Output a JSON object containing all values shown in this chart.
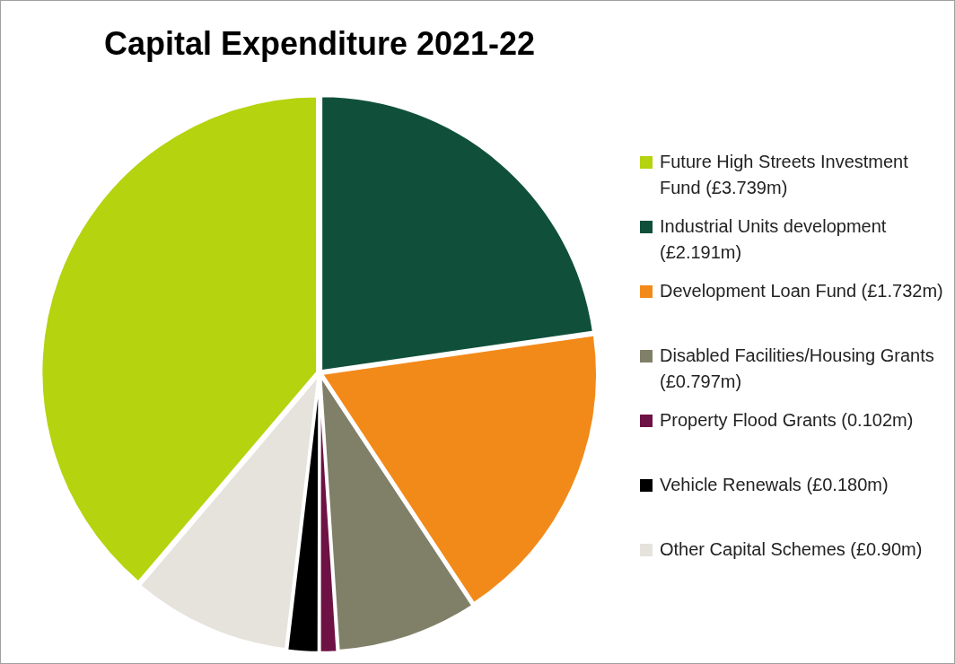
{
  "chart_data": {
    "type": "pie",
    "title": "Capital Expenditure 2021-22",
    "categories": [
      "Future High Streets Investment Fund (£3.739m)",
      "Industrial Units development (£2.191m)",
      "Development Loan Fund (£1.732m)",
      "Disabled Facilities/Housing Grants (£0.797m)",
      "Property Flood Grants (0.102m)",
      "Vehicle Renewals (£0.180m)",
      "Other Capital Schemes (£0.90m)"
    ],
    "values": [
      3.739,
      2.191,
      1.732,
      0.797,
      0.102,
      0.18,
      0.9
    ],
    "colors": [
      "#b5d30f",
      "#10503a",
      "#f28a1a",
      "#808069",
      "#6e1144",
      "#000000",
      "#e6e2dc"
    ],
    "legend": "right"
  }
}
